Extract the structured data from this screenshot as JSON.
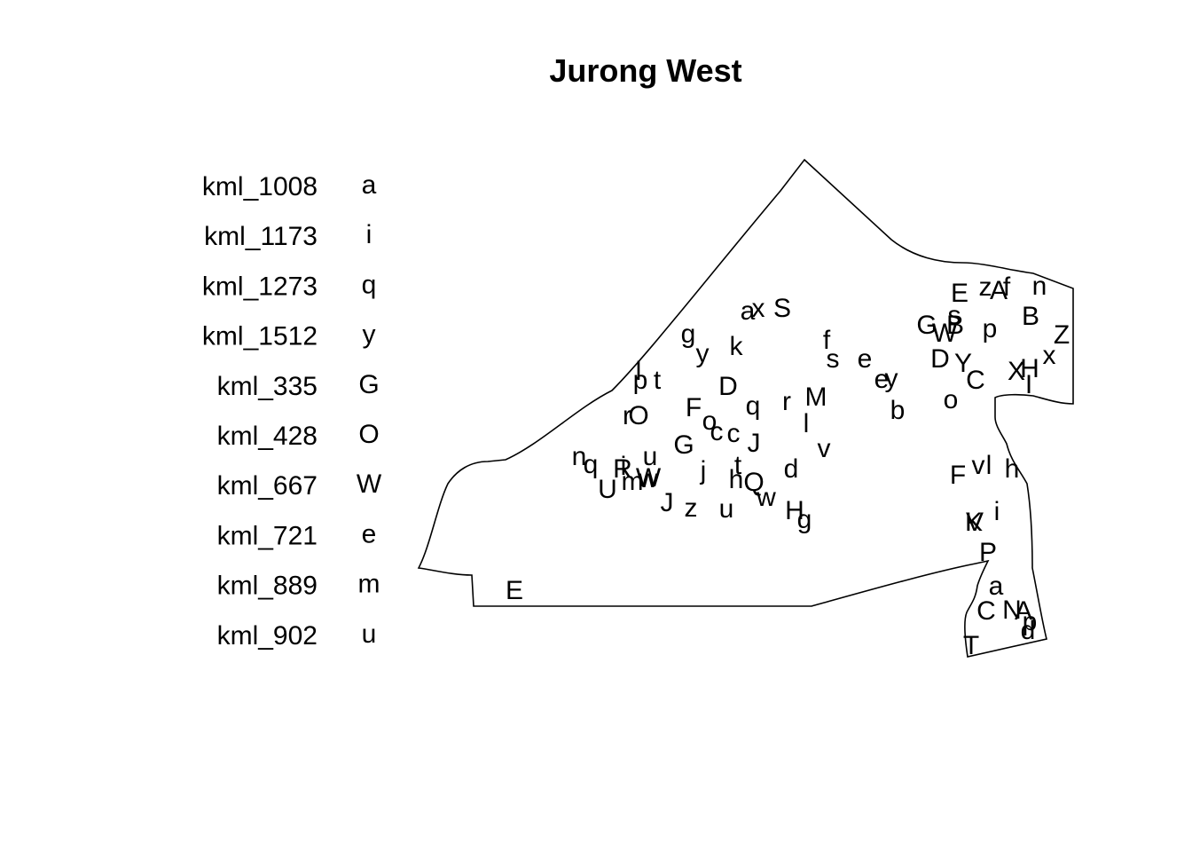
{
  "title": "Jurong West",
  "legend": [
    {
      "key": "kml_1008",
      "symbol": "a"
    },
    {
      "key": "kml_1173",
      "symbol": "i"
    },
    {
      "key": "kml_1273",
      "symbol": "q"
    },
    {
      "key": "kml_1512",
      "symbol": "y"
    },
    {
      "key": "kml_335",
      "symbol": "G"
    },
    {
      "key": "kml_428",
      "symbol": "O"
    },
    {
      "key": "kml_667",
      "symbol": "W"
    },
    {
      "key": "kml_721",
      "symbol": "e"
    },
    {
      "key": "kml_889",
      "symbol": "m"
    },
    {
      "key": "kml_902",
      "symbol": "u"
    }
  ],
  "point_labels": [
    "a",
    "x",
    "S",
    "g",
    "y",
    "k",
    "f",
    "s",
    "e",
    "e",
    "y",
    "b",
    "l",
    "p",
    "t",
    "D",
    "r",
    "O",
    "F",
    "o",
    "c",
    "c",
    "q",
    "r",
    "M",
    "l",
    "v",
    "G",
    "J",
    "n",
    "q",
    "R",
    "i",
    "u",
    "U",
    "m",
    "w",
    "W",
    "j",
    "t",
    "h",
    "Q",
    "w",
    "d",
    "J",
    "z",
    "u",
    "H",
    "g",
    "E",
    "E",
    "z",
    "A",
    "f",
    "n",
    "G",
    "s",
    "W",
    "B",
    "p",
    "B",
    "Z",
    "D",
    "Y",
    "C",
    "X",
    "H",
    "x",
    "I",
    "o",
    "F",
    "v",
    "l",
    "h",
    "K",
    "V",
    "i",
    "P",
    "a",
    "C",
    "N",
    "A",
    "p",
    "d",
    "T"
  ],
  "colors": {
    "background": "#ffffff",
    "ink": "#000000"
  }
}
